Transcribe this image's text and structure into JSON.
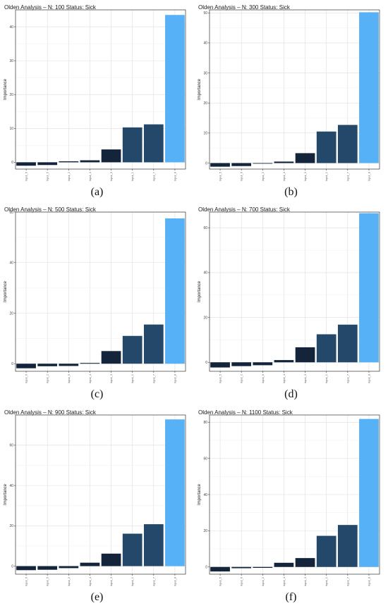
{
  "colors": {
    "bar_low": "#13243b",
    "bar_mid": "#24486a",
    "bar_high": "#56b1f7",
    "grid": "#dedede",
    "border": "#333333",
    "background": "#ffffff"
  },
  "chart_data": [
    {
      "type": "bar",
      "caption": "(a)",
      "title": "Olden Analysis – N:  100  Status: Sick",
      "ylabel": "Importance",
      "xlabel": "",
      "ylim": [
        -2,
        45
      ],
      "yticks": [
        0,
        10,
        20,
        30,
        40
      ],
      "categories": [
        "Input_6",
        "Input_5",
        "Input_2",
        "Input_4",
        "Input_3",
        "Input_1",
        "Input_7",
        "Input_8"
      ],
      "values": [
        -1.0,
        -0.8,
        0.3,
        0.6,
        3.8,
        10.3,
        11.2,
        43.5
      ],
      "grid": true
    },
    {
      "type": "bar",
      "caption": "(b)",
      "title": "Olden Analysis – N:  300  Status: Sick",
      "ylabel": "Importance",
      "xlabel": "",
      "ylim": [
        -2,
        51
      ],
      "yticks": [
        0,
        10,
        20,
        30,
        40,
        50
      ],
      "categories": [
        "Input_5",
        "Input_6",
        "Input_2",
        "Input_4",
        "Input_3",
        "Input_1",
        "Input_7",
        "Input_8"
      ],
      "values": [
        -1.2,
        -1.0,
        -0.2,
        0.5,
        3.3,
        10.5,
        12.7,
        50.2
      ],
      "grid": true
    },
    {
      "type": "bar",
      "caption": "(c)",
      "title": "Olden Analysis – N:  500  Status: Sick",
      "ylabel": "Importance",
      "xlabel": "",
      "ylim": [
        -3,
        60
      ],
      "yticks": [
        0,
        20,
        40,
        60
      ],
      "categories": [
        "Input_6",
        "Input_2",
        "Input_5",
        "Input_4",
        "Input_3",
        "Input_1",
        "Input_7",
        "Input_8"
      ],
      "values": [
        -1.8,
        -1.0,
        -0.9,
        0.3,
        5.0,
        11.0,
        15.5,
        57.5
      ],
      "grid": true
    },
    {
      "type": "bar",
      "caption": "(d)",
      "title": "Olden Analysis – N:  700  Status: Sick",
      "ylabel": "Importance",
      "xlabel": "",
      "ylim": [
        -4,
        67
      ],
      "yticks": [
        0,
        20,
        40,
        60
      ],
      "categories": [
        "Input_5",
        "Input_2",
        "Input_6",
        "Input_4",
        "Input_3",
        "Input_1",
        "Input_7",
        "Input_8"
      ],
      "values": [
        -2.3,
        -1.7,
        -1.3,
        1.0,
        6.7,
        12.5,
        16.8,
        66.5
      ],
      "grid": true
    },
    {
      "type": "bar",
      "caption": "(e)",
      "title": "Olden Analysis – N:  900  Status: Sick",
      "ylabel": "Importance",
      "xlabel": "",
      "ylim": [
        -4,
        75
      ],
      "yticks": [
        0,
        20,
        40,
        60
      ],
      "categories": [
        "Input_6",
        "Input_5",
        "Input_2",
        "Input_4",
        "Input_3",
        "Input_1",
        "Input_7",
        "Input_8"
      ],
      "values": [
        -2.0,
        -1.8,
        -1.0,
        1.7,
        6.2,
        16.1,
        20.8,
        72.8
      ],
      "grid": true
    },
    {
      "type": "bar",
      "caption": "(f)",
      "title": "Olden Analysis – N:  1100  Status: Sick",
      "ylabel": "Importance",
      "xlabel": "",
      "ylim": [
        -4,
        84
      ],
      "yticks": [
        0,
        20,
        40,
        60,
        80
      ],
      "categories": [
        "Input_5",
        "Input_6",
        "Input_2",
        "Input_4",
        "Input_3",
        "Input_1",
        "Input_7",
        "Input_8"
      ],
      "values": [
        -2.5,
        -0.7,
        -0.5,
        2.3,
        4.9,
        17.2,
        23.2,
        81.8
      ],
      "grid": true
    }
  ]
}
